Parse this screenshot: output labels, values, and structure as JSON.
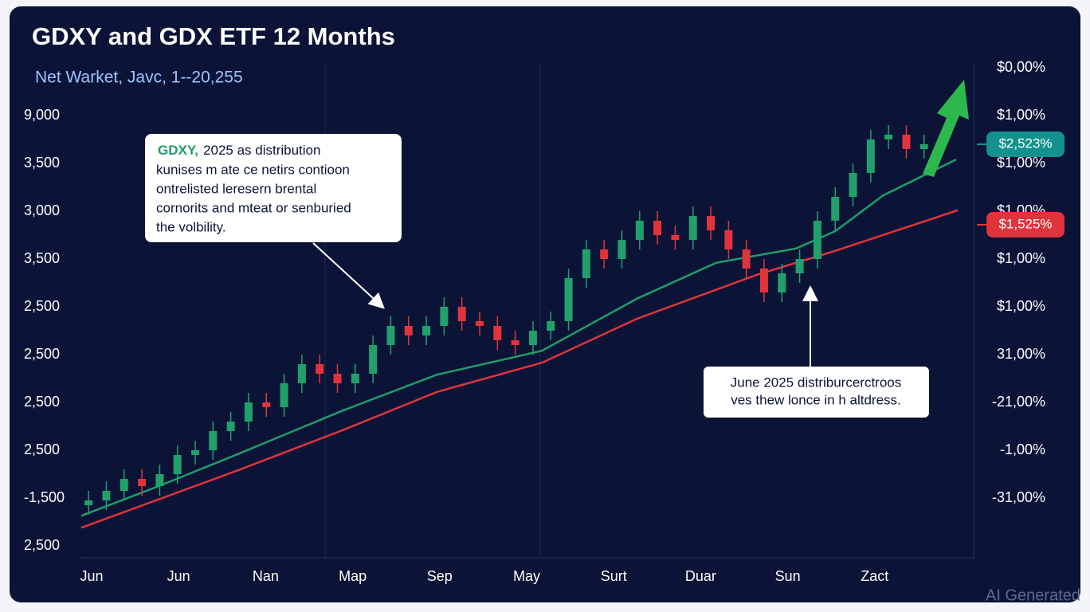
{
  "title": "GDXY and GDX ETF 12 Months",
  "subtitle": "Net Warket, Javc, 1--20,255",
  "watermark": "AI Generated",
  "chart_data": {
    "type": "candlestick",
    "xlim": [
      -0.5,
      49.7
    ],
    "ylim": [
      0,
      9
    ],
    "y_axis_labels": [
      "2,500",
      "-1,500",
      "2,500",
      "2,500",
      "2,500",
      "2,500",
      "3,500",
      "3,000",
      "3,500",
      "9,000"
    ],
    "right_axis_labels": [
      "-31,00%",
      "-1,00%",
      "-21,00%",
      "31,00%",
      "$1,00%",
      "$1,00%",
      "$1,00%",
      "$1,00%",
      "$1,00%",
      "$0,00%"
    ],
    "x_labels": [
      "Jun",
      "Jun",
      "Nan",
      "Map",
      "Sep",
      "May",
      "Surt",
      "Duar",
      "Sun",
      "Zact"
    ],
    "up_color": "#22a06b",
    "down_color": "#e0343c",
    "open": [
      0.85,
      0.95,
      1.15,
      1.4,
      1.25,
      1.5,
      1.9,
      2.0,
      2.4,
      2.6,
      3.0,
      2.9,
      3.4,
      3.8,
      3.6,
      3.4,
      3.6,
      4.2,
      4.6,
      4.4,
      4.6,
      5.0,
      4.7,
      4.6,
      4.3,
      4.2,
      4.5,
      4.7,
      5.6,
      6.2,
      6.0,
      6.4,
      6.8,
      6.5,
      6.4,
      6.9,
      6.6,
      6.2,
      5.8,
      5.3,
      5.7,
      6.0,
      6.8,
      7.3,
      7.8,
      8.5,
      8.6,
      8.3
    ],
    "high": [
      1.15,
      1.35,
      1.6,
      1.6,
      1.7,
      2.1,
      2.2,
      2.6,
      2.8,
      3.2,
      3.2,
      3.6,
      4.0,
      4.0,
      3.8,
      3.8,
      4.4,
      4.8,
      4.8,
      4.8,
      5.2,
      5.2,
      4.9,
      4.8,
      4.5,
      4.7,
      4.9,
      5.8,
      6.4,
      6.4,
      6.6,
      7.0,
      7.0,
      6.7,
      7.1,
      7.1,
      6.8,
      6.4,
      6.0,
      5.9,
      6.2,
      7.0,
      7.5,
      8.0,
      8.7,
      8.8,
      8.8,
      8.6
    ],
    "low": [
      0.65,
      0.75,
      0.95,
      1.05,
      1.05,
      1.3,
      1.7,
      1.8,
      2.2,
      2.4,
      2.7,
      2.7,
      3.2,
      3.4,
      3.2,
      3.2,
      3.4,
      4.0,
      4.2,
      4.2,
      4.4,
      4.5,
      4.4,
      4.1,
      4.0,
      4.0,
      4.3,
      4.5,
      5.4,
      5.8,
      5.8,
      6.2,
      6.3,
      6.2,
      6.2,
      6.4,
      6.0,
      5.6,
      5.1,
      5.1,
      5.5,
      5.8,
      6.6,
      7.1,
      7.6,
      8.3,
      8.1,
      8.1
    ],
    "close": [
      0.95,
      1.15,
      1.4,
      1.25,
      1.5,
      1.9,
      2.0,
      2.4,
      2.6,
      3.0,
      2.9,
      3.4,
      3.8,
      3.6,
      3.4,
      3.6,
      4.2,
      4.6,
      4.4,
      4.6,
      5.0,
      4.7,
      4.6,
      4.3,
      4.2,
      4.5,
      4.7,
      5.6,
      6.2,
      6.0,
      6.4,
      6.8,
      6.5,
      6.4,
      6.9,
      6.6,
      6.2,
      5.8,
      5.3,
      5.7,
      6.0,
      6.8,
      7.3,
      7.8,
      8.5,
      8.6,
      8.3,
      8.4
    ],
    "lines": [
      {
        "color": "#1f9d6b",
        "x": [
          -0.4,
          3.95,
          8.4,
          14.3,
          19.6,
          25.5,
          30.85,
          35.3,
          39.8,
          42.0,
          44.7,
          48.8
        ],
        "values": [
          0.63,
          1.25,
          1.92,
          2.83,
          3.58,
          4.08,
          5.17,
          5.92,
          6.22,
          6.58,
          7.33,
          8.08
        ]
      },
      {
        "color": "#e0343c",
        "x": [
          -0.4,
          8.4,
          14.3,
          19.6,
          25.5,
          30.85,
          37.6,
          42.0,
          48.9
        ],
        "values": [
          0.38,
          1.58,
          2.42,
          3.22,
          3.83,
          4.75,
          5.67,
          6.17,
          7.02
        ]
      }
    ],
    "badges": [
      {
        "label": "$2,523%",
        "color": "#14918f"
      },
      {
        "label": "$1,525%",
        "color": "#e0343c"
      }
    ],
    "annotations": [
      {
        "title": "GDXY,",
        "lines": [
          "2025 as distribution",
          "kunises m ate ce netirs contioon",
          "ontrelisted leresern brental",
          "cornorits and mteat or senburied",
          "the volbility."
        ]
      },
      {
        "lines": [
          "June 2025 distriburcerctroos",
          "ves thew lonce in h altdress."
        ]
      }
    ]
  }
}
